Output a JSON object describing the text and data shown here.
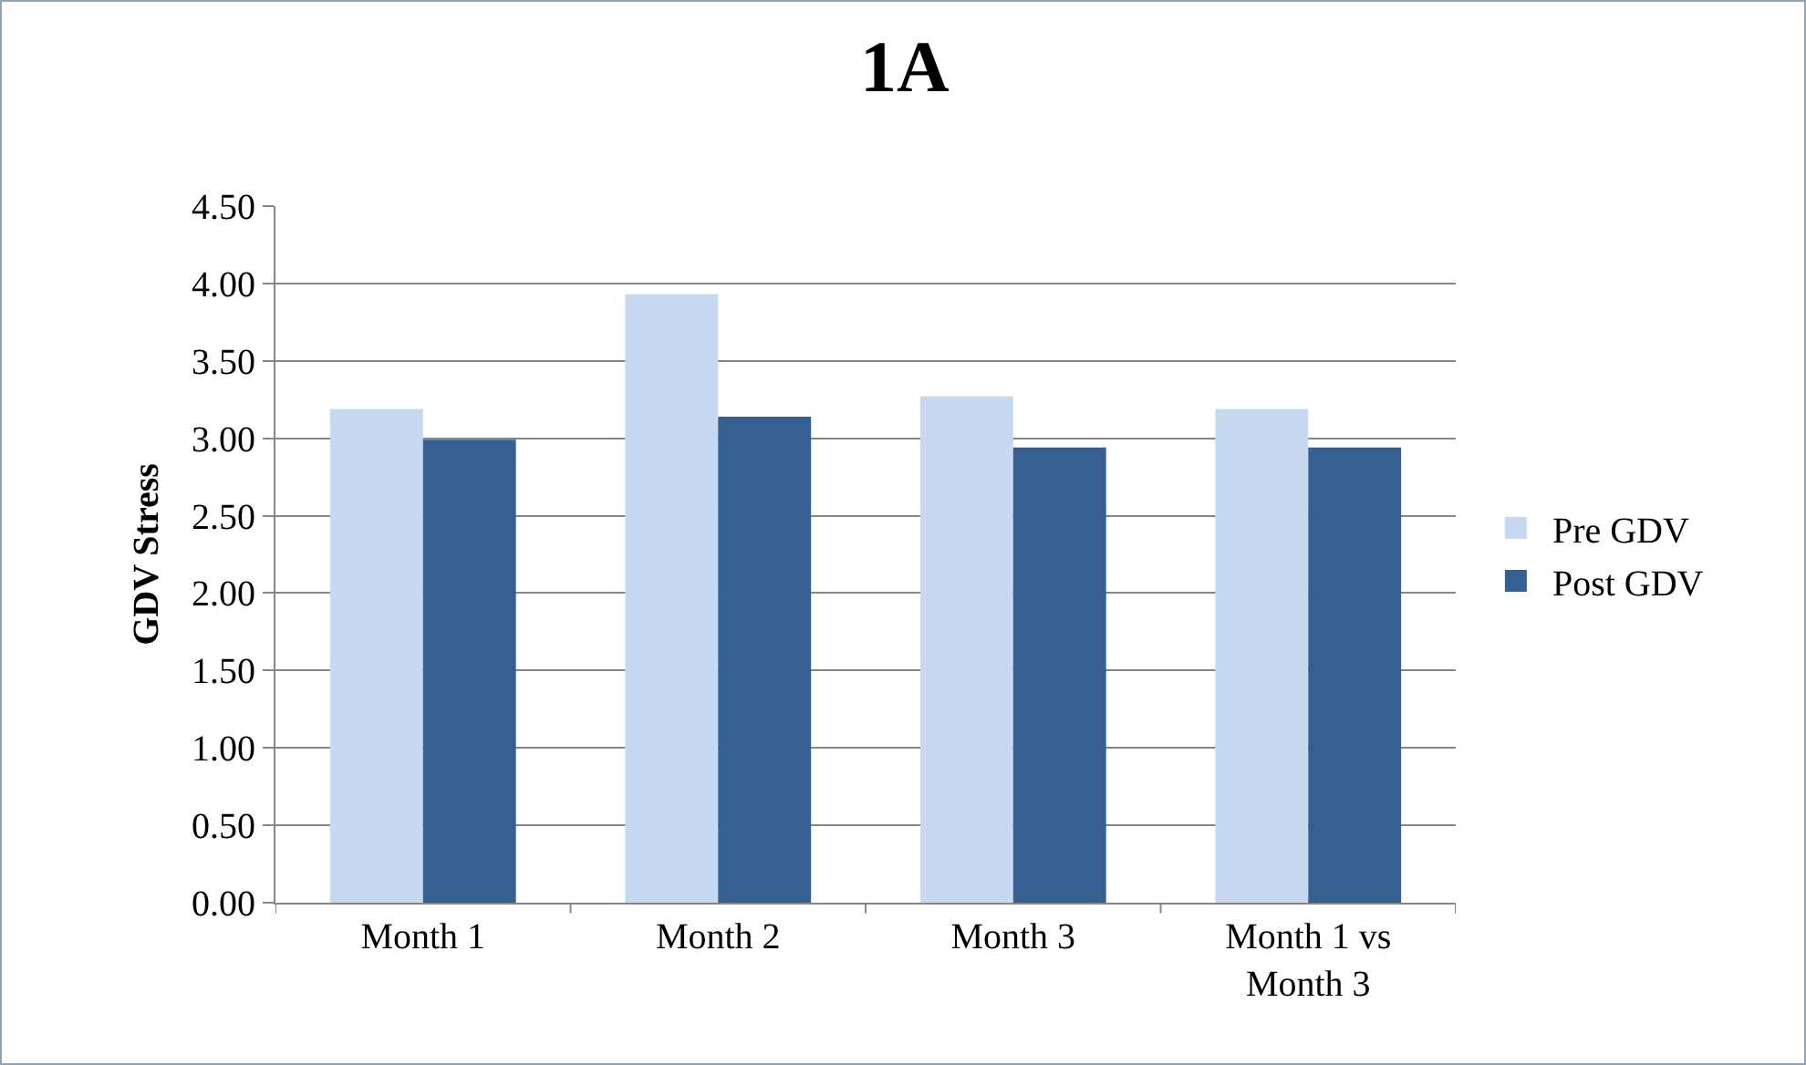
{
  "chart_data": {
    "type": "bar",
    "title": "1A",
    "ylabel": "GDV Stress",
    "categories": [
      "Month 1",
      "Month 2",
      "Month 3",
      "Month 1 vs Month 3"
    ],
    "series": [
      {
        "name": "Pre GDV",
        "color": "#c6d9f1",
        "values": [
          3.19,
          3.93,
          3.27,
          3.19
        ]
      },
      {
        "name": "Post GDV",
        "color": "#366092",
        "values": [
          2.99,
          3.14,
          2.94,
          2.94
        ]
      }
    ],
    "ylim": [
      0,
      4.5
    ],
    "yticks": [
      {
        "value": 0,
        "label": "0.00"
      },
      {
        "value": 0.5,
        "label": "0.50"
      },
      {
        "value": 1,
        "label": "1.00"
      },
      {
        "value": 1.5,
        "label": "1.50"
      },
      {
        "value": 2,
        "label": "2.00"
      },
      {
        "value": 2.5,
        "label": "2.50"
      },
      {
        "value": 3,
        "label": "3.00"
      },
      {
        "value": 3.5,
        "label": "3.50"
      },
      {
        "value": 4,
        "label": "4.00"
      },
      {
        "value": 4.5,
        "label": "4.50"
      }
    ],
    "grid": "y",
    "legend": "right"
  }
}
